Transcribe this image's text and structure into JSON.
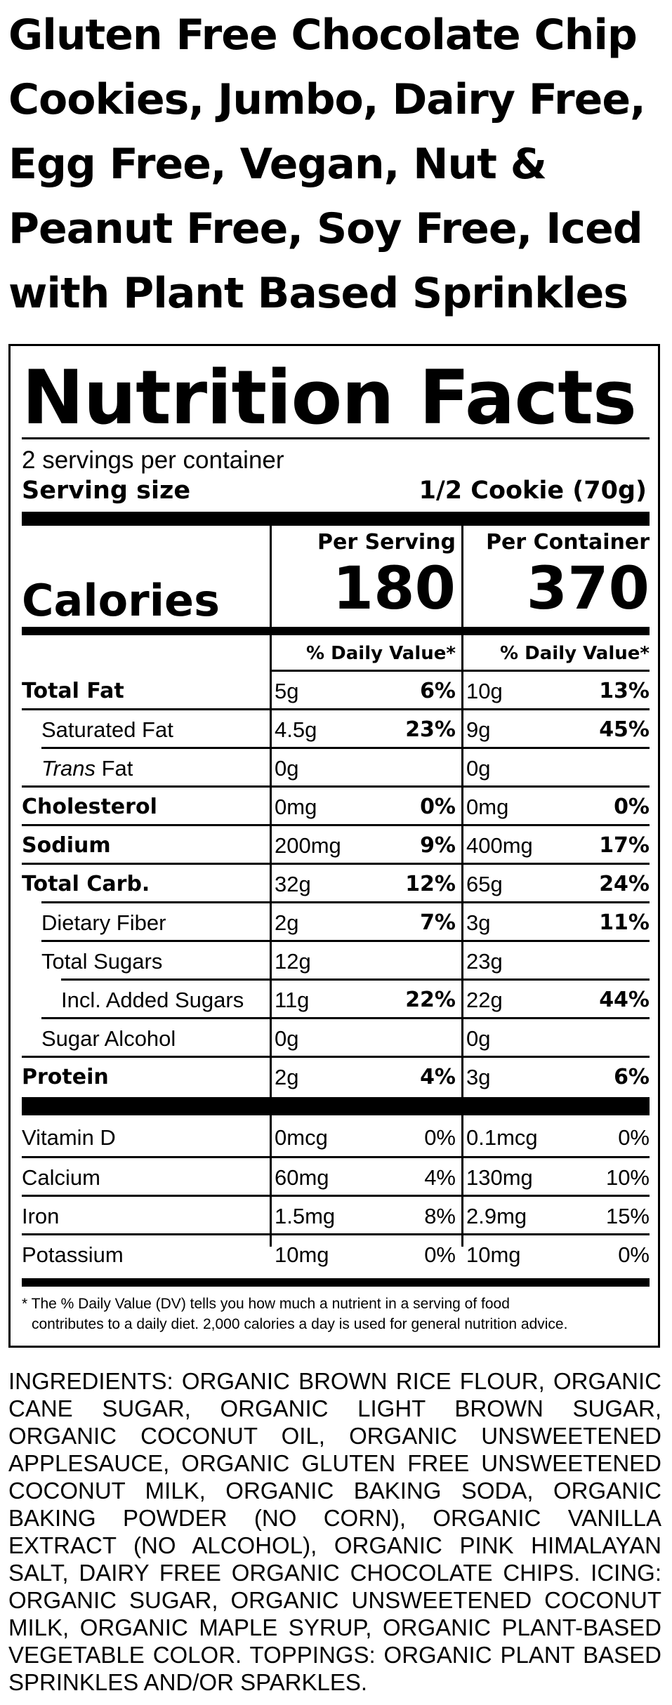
{
  "product": {
    "title": "Gluten Free Chocolate Chip Cookies, Jumbo, Dairy Free, Egg Free, Vegan, Nut & Peanut Free, Soy Free, Iced with Plant Based Sprinkles"
  },
  "label": {
    "heading": "Nutrition Facts",
    "servings_per_container": "2 servings per container",
    "serving_size_label": "Serving size",
    "serving_size_value": "1/2 Cookie (70g)",
    "per_serving_label": "Per Serving",
    "per_container_label": "Per Container",
    "calories_label": "Calories",
    "calories_per_serving": "180",
    "calories_per_container": "370",
    "dv_header": "% Daily Value*",
    "nutrients": [
      {
        "name": "Total Fat",
        "serving_amt": "5g",
        "serving_dv": "6%",
        "container_amt": "10g",
        "container_dv": "13%"
      },
      {
        "name": "Saturated Fat",
        "serving_amt": "4.5g",
        "serving_dv": "23%",
        "container_amt": "9g",
        "container_dv": "45%"
      },
      {
        "name": "Fat",
        "name_prefix": "Trans",
        "serving_amt": "0g",
        "serving_dv": "",
        "container_amt": "0g",
        "container_dv": ""
      },
      {
        "name": "Cholesterol",
        "serving_amt": "0mg",
        "serving_dv": "0%",
        "container_amt": "0mg",
        "container_dv": "0%"
      },
      {
        "name": "Sodium",
        "serving_amt": "200mg",
        "serving_dv": "9%",
        "container_amt": "400mg",
        "container_dv": "17%"
      },
      {
        "name": "Total Carb.",
        "serving_amt": "32g",
        "serving_dv": "12%",
        "container_amt": "65g",
        "container_dv": "24%"
      },
      {
        "name": "Dietary Fiber",
        "serving_amt": "2g",
        "serving_dv": "7%",
        "container_amt": "3g",
        "container_dv": "11%"
      },
      {
        "name": "Total Sugars",
        "serving_amt": "12g",
        "serving_dv": "",
        "container_amt": "23g",
        "container_dv": ""
      },
      {
        "name": "Incl. Added Sugars",
        "serving_amt": "11g",
        "serving_dv": "22%",
        "container_amt": "22g",
        "container_dv": "44%"
      },
      {
        "name": "Sugar Alcohol",
        "serving_amt": "0g",
        "serving_dv": "",
        "container_amt": "0g",
        "container_dv": ""
      },
      {
        "name": "Protein",
        "serving_amt": "2g",
        "serving_dv": "4%",
        "container_amt": "3g",
        "container_dv": "6%"
      }
    ],
    "vitamins": [
      {
        "name": "Vitamin D",
        "serving_amt": "0mcg",
        "serving_dv": "0%",
        "container_amt": "0.1mcg",
        "container_dv": "0%"
      },
      {
        "name": "Calcium",
        "serving_amt": "60mg",
        "serving_dv": "4%",
        "container_amt": "130mg",
        "container_dv": "10%"
      },
      {
        "name": "Iron",
        "serving_amt": "1.5mg",
        "serving_dv": "8%",
        "container_amt": "2.9mg",
        "container_dv": "15%"
      },
      {
        "name": "Potassium",
        "serving_amt": "10mg",
        "serving_dv": "0%",
        "container_amt": "10mg",
        "container_dv": "0%"
      }
    ],
    "footnote_line1": "* The % Daily Value (DV) tells you how much a nutrient in a serving of food",
    "footnote_line2": "contributes to a daily diet. 2,000 calories a day is used for general nutrition advice."
  },
  "ingredients": "INGREDIENTS: ORGANIC BROWN RICE FLOUR, ORGANIC CANE SUGAR, ORGANIC LIGHT BROWN SUGAR, ORGANIC COCONUT OIL, ORGANIC UNSWEETENED APPLESAUCE, ORGANIC GLUTEN FREE UNSWEETENED COCONUT MILK, ORGANIC BAKING SODA, ORGANIC BAKING POWDER (NO CORN), ORGANIC VANILLA EXTRACT (NO ALCOHOL), ORGANIC PINK HIMALAYAN SALT, DAIRY FREE ORGANIC CHOCOLATE CHIPS. ICING: ORGANIC SUGAR, ORGANIC UNSWEETENED COCONUT MILK, ORGANIC MAPLE SYRUP, ORGANIC PLANT-BASED VEGETABLE COLOR. TOPPINGS: ORGANIC PLANT BASED SPRINKLES AND/OR SPARKLES."
}
